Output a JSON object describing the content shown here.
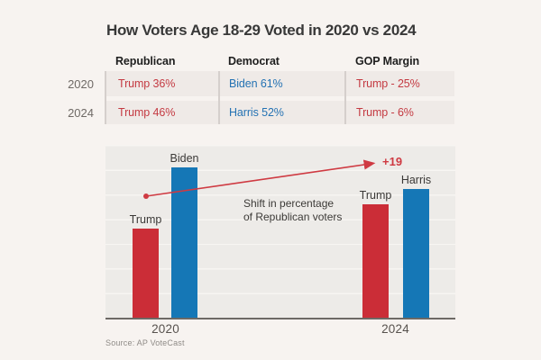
{
  "title": "How Voters Age 18-29 Voted in 2020 vs 2024",
  "table": {
    "columns": [
      "Republican",
      "Democrat",
      "GOP Margin"
    ],
    "rows": [
      {
        "year": "2020",
        "republican": "Trump 36%",
        "democrat": "Biden 61%",
        "gop_margin": "Trump - 25%"
      },
      {
        "year": "2024",
        "republican": "Trump 46%",
        "democrat": "Harris 52%",
        "gop_margin": "Trump - 6%"
      }
    ]
  },
  "chart_data": {
    "type": "bar",
    "title": "",
    "xlabel": "",
    "ylabel": "",
    "ylim": [
      0,
      70
    ],
    "grid": true,
    "gridline_step": 10,
    "groups": [
      {
        "label": "2020",
        "bars": [
          {
            "name": "Trump",
            "value": 36,
            "color": "#cb2d37"
          },
          {
            "name": "Biden",
            "value": 61,
            "color": "#1577b6"
          }
        ]
      },
      {
        "label": "2024",
        "bars": [
          {
            "name": "Trump",
            "value": 46,
            "color": "#cb2d37"
          },
          {
            "name": "Harris",
            "value": 52,
            "color": "#1577b6"
          }
        ]
      }
    ],
    "annotation": {
      "line1": "Shift in percentage",
      "line2": "of Republican voters"
    },
    "arrow_label": "+19"
  },
  "footer": {
    "source": "Source: AP VoteCast"
  },
  "colors": {
    "republican_red": "#c43a42",
    "democrat_blue": "#2472b3",
    "arrow_red": "#cf3a42",
    "page_background": "#f7f3f0"
  }
}
